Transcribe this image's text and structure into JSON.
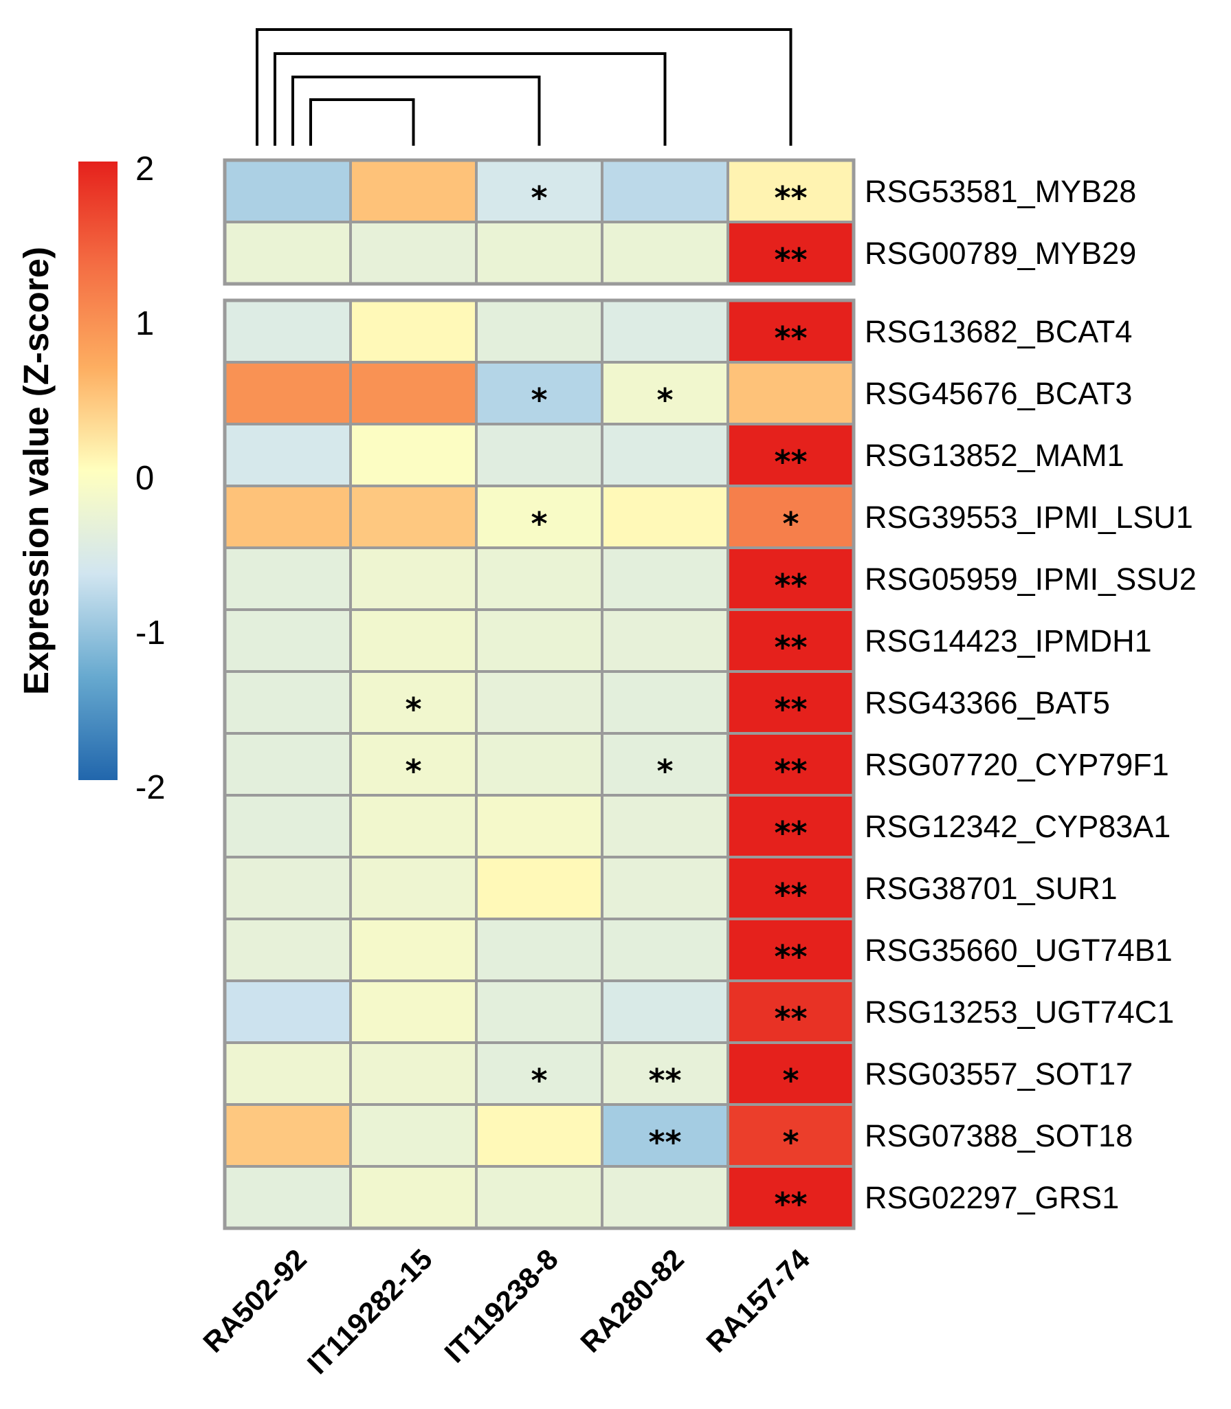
{
  "chart_data": {
    "type": "heatmap",
    "title": "",
    "legend": {
      "title": "Expression value (Z-score)",
      "ticks": [
        "2",
        "1",
        "0",
        "-1",
        "-2"
      ],
      "range": [
        -2,
        2
      ],
      "colors": [
        "#2166ac",
        "#67a9cf",
        "#d1e5f0",
        "#ffffbf",
        "#fdae61",
        "#f46d43",
        "#e5211c"
      ]
    },
    "columns": [
      "RA502-92",
      "IT119282-15",
      "IT119238-8",
      "RA280-82",
      "RA157-74"
    ],
    "rows": [
      "RSG53581_MYB28",
      "RSG00789_MYB29",
      "RSG13682_BCAT4",
      "RSG45676_BCAT3",
      "RSG13852_MAM1",
      "RSG39553_IPMI_LSU1",
      "RSG05959_IPMI_SSU2",
      "RSG14423_IPMDH1",
      "RSG43366_BAT5",
      "RSG07720_CYP79F1",
      "RSG12342_CYP83A1",
      "RSG38701_SUR1",
      "RSG35660_UGT74B1",
      "RSG13253_UGT74C1",
      "RSG03557_SOT17",
      "RSG07388_SOT18",
      "RSG02297_GRS1"
    ],
    "row_groups": [
      2,
      15
    ],
    "values": [
      [
        -0.9,
        0.5,
        -0.6,
        -0.8,
        0.1
      ],
      [
        -0.3,
        -0.35,
        -0.3,
        -0.3,
        2.0
      ],
      [
        -0.5,
        0.05,
        -0.4,
        -0.5,
        2.0
      ],
      [
        0.95,
        0.95,
        -0.85,
        -0.2,
        0.5
      ],
      [
        -0.6,
        -0.05,
        -0.45,
        -0.5,
        2.0
      ],
      [
        0.5,
        0.45,
        -0.1,
        0.05,
        1.15
      ],
      [
        -0.4,
        -0.25,
        -0.3,
        -0.4,
        2.0
      ],
      [
        -0.4,
        -0.2,
        -0.3,
        -0.35,
        2.0
      ],
      [
        -0.4,
        -0.2,
        -0.35,
        -0.4,
        2.0
      ],
      [
        -0.4,
        -0.2,
        -0.3,
        -0.4,
        2.0
      ],
      [
        -0.4,
        -0.2,
        -0.15,
        -0.35,
        2.0
      ],
      [
        -0.35,
        -0.25,
        0.05,
        -0.35,
        2.0
      ],
      [
        -0.35,
        -0.15,
        -0.4,
        -0.4,
        2.0
      ],
      [
        -0.7,
        -0.15,
        -0.4,
        -0.55,
        1.85
      ],
      [
        -0.25,
        -0.25,
        -0.4,
        -0.35,
        2.0
      ],
      [
        0.45,
        -0.3,
        0.05,
        -0.95,
        1.75
      ],
      [
        -0.4,
        -0.2,
        -0.3,
        -0.35,
        2.0
      ]
    ],
    "significance": [
      [
        "",
        "",
        "*",
        "",
        "**"
      ],
      [
        "",
        "",
        "",
        "",
        "**"
      ],
      [
        "",
        "",
        "",
        "",
        "**"
      ],
      [
        "",
        "",
        "*",
        "*",
        ""
      ],
      [
        "",
        "",
        "",
        "",
        "**"
      ],
      [
        "",
        "",
        "*",
        "",
        "*"
      ],
      [
        "",
        "",
        "",
        "",
        "**"
      ],
      [
        "",
        "",
        "",
        "",
        "**"
      ],
      [
        "",
        "*",
        "",
        "",
        "**"
      ],
      [
        "",
        "*",
        "",
        "*",
        "**"
      ],
      [
        "",
        "",
        "",
        "",
        "**"
      ],
      [
        "",
        "",
        "",
        "",
        "**"
      ],
      [
        "",
        "",
        "",
        "",
        "**"
      ],
      [
        "",
        "",
        "",
        "",
        "**"
      ],
      [
        "",
        "",
        "*",
        "**",
        "*"
      ],
      [
        "",
        "",
        "",
        "**",
        "*"
      ],
      [
        "",
        "",
        "",
        "",
        "**"
      ]
    ],
    "dendrogram": {
      "type": "column",
      "merges": [
        [
          "RA502-92",
          "IT119282-15"
        ],
        [
          "(RA502-92, IT119282-15)",
          "IT119238-8"
        ],
        [
          "(RA502-92, IT119282-15, IT119238-8)",
          "RA280-82"
        ],
        [
          "(RA502-92, IT119282-15, IT119238-8, RA280-82)",
          "RA157-74"
        ]
      ]
    }
  }
}
